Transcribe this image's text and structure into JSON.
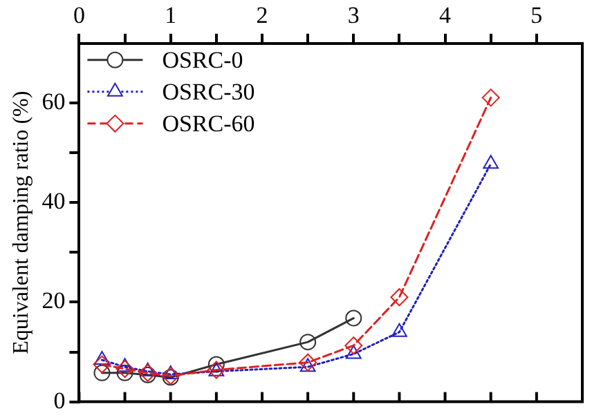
{
  "chart_data": {
    "type": "line",
    "ylabel": "Equivalent damping ratio (%)",
    "xlim": [
      0,
      5.5
    ],
    "xticks": [
      0,
      {
        "value": 0.5,
        "label": null
      },
      1,
      {
        "value": 1.5,
        "label": null
      },
      2,
      {
        "value": 2.5,
        "label": null
      },
      3,
      {
        "value": 3.5,
        "label": null
      },
      4,
      {
        "value": 4.5,
        "label": null
      },
      5
    ],
    "ylim": [
      0,
      72
    ],
    "yticks": [
      0,
      {
        "value": 10,
        "label": null
      },
      20,
      {
        "value": 30,
        "label": null
      },
      40,
      {
        "value": 50,
        "label": null
      },
      60
    ],
    "grid": false,
    "legend": "top left",
    "series": [
      {
        "name": "OSRC-0",
        "color": "#333333",
        "marker": "circle",
        "line_style": "solid",
        "x": [
          0.25,
          0.5,
          0.75,
          1,
          1.5,
          2.5,
          3
        ],
        "values": [
          5.8,
          5.8,
          5.4,
          4.9,
          7.5,
          12,
          16.8
        ]
      },
      {
        "name": "OSRC-30",
        "color": "#2020c0",
        "marker": "triangle",
        "line_style": "dotted",
        "x": [
          0.25,
          0.5,
          0.75,
          1,
          1.5,
          2.5,
          3,
          3.5,
          4.5
        ],
        "values": [
          8.4,
          7,
          6.1,
          5.5,
          6.1,
          7,
          9.6,
          14,
          47.8
        ]
      },
      {
        "name": "OSRC-60",
        "color": "#e02020",
        "marker": "diamond",
        "line_style": "dashed",
        "x": [
          0.25,
          0.5,
          0.75,
          1,
          1.5,
          2.5,
          3,
          3.5,
          4.5
        ],
        "values": [
          7.5,
          6.6,
          5.8,
          5.2,
          6.4,
          7.9,
          11.3,
          21,
          61.1
        ]
      }
    ]
  }
}
